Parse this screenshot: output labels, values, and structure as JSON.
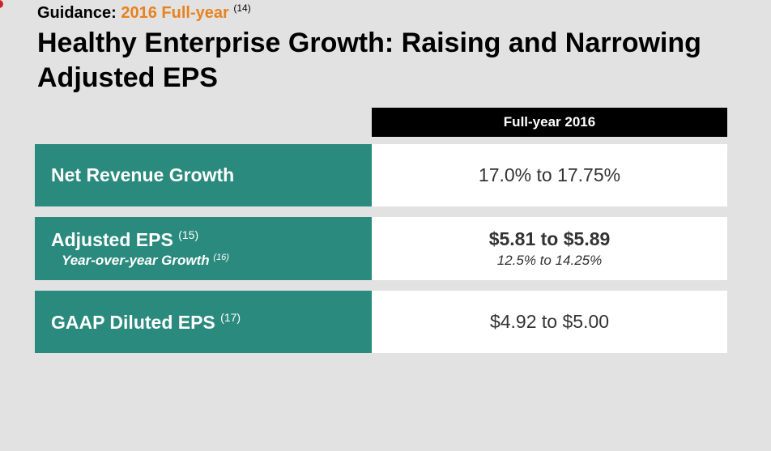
{
  "header": {
    "eyebrow_label": "Guidance:",
    "eyebrow_accent": "2016 Full-year",
    "eyebrow_note": "(14)",
    "title": "Healthy Enterprise Growth: Raising and Narrowing Adjusted EPS"
  },
  "table": {
    "column_header": "Full-year 2016",
    "rows": [
      {
        "label": "Net Revenue Growth",
        "value": "17.0% to 17.75%"
      },
      {
        "label": "Adjusted EPS",
        "label_note": "(15)",
        "sublabel": "Year-over-year Growth",
        "sublabel_note": "(16)",
        "value": "$5.81 to $5.89",
        "subvalue": "12.5% to 14.25%"
      },
      {
        "label": "GAAP Diluted EPS",
        "label_note": "(17)",
        "value": "$4.92 to $5.00"
      }
    ]
  },
  "colors": {
    "label_fill": "#2a8a7d",
    "accent": "#e8821e",
    "header_fill": "#000000",
    "background": "#e2e2e2"
  }
}
